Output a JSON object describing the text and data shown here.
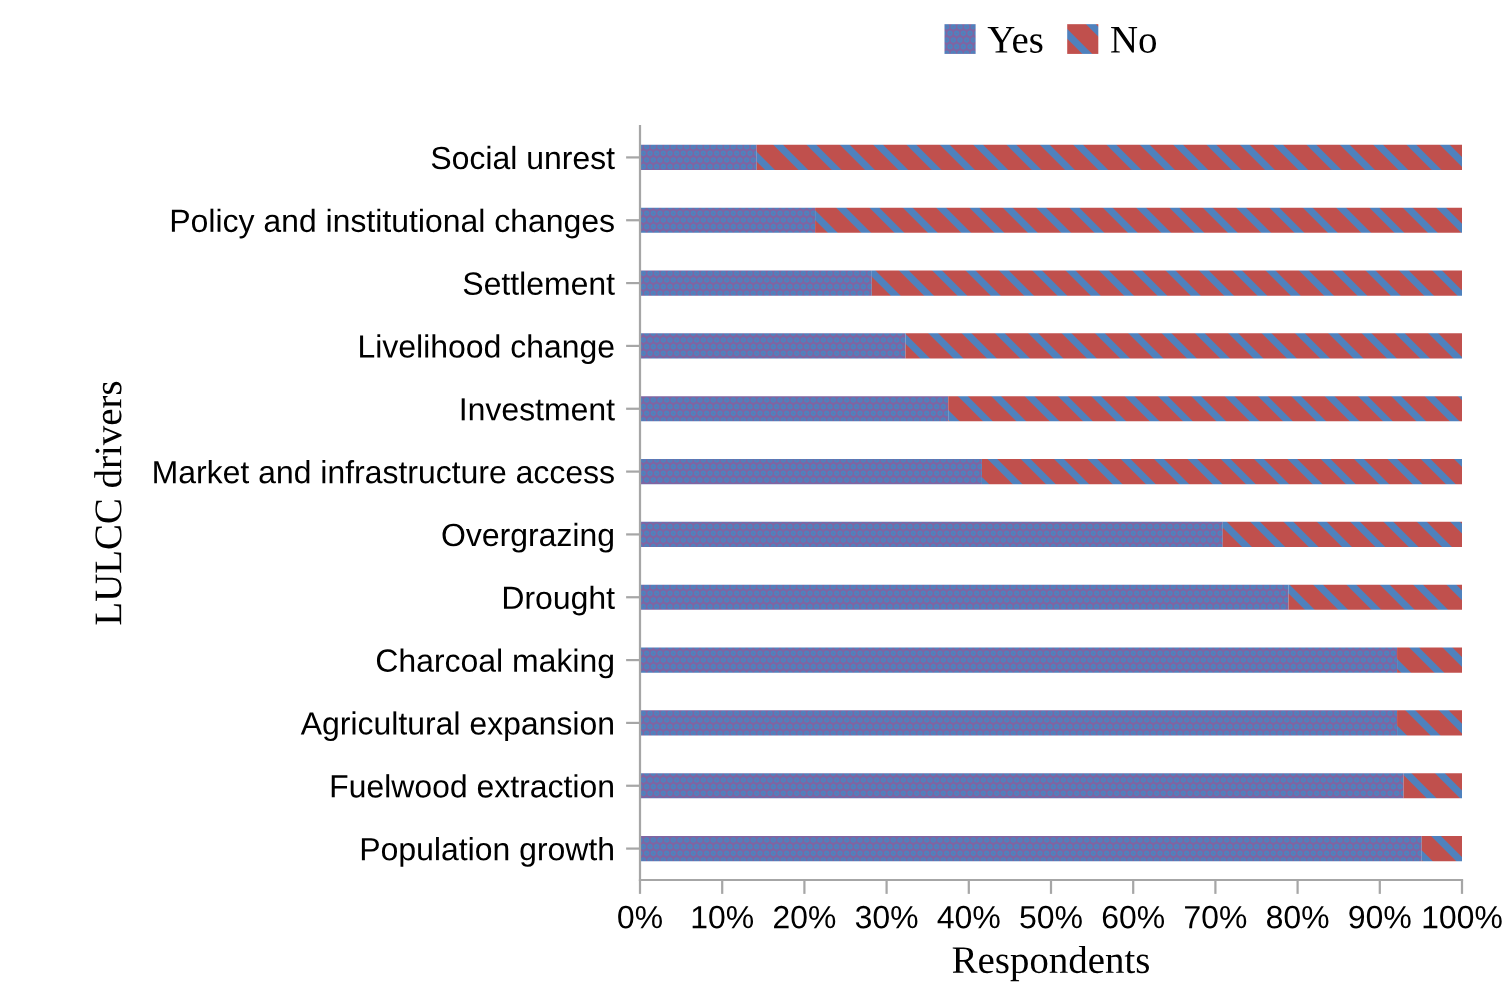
{
  "chart_data": {
    "type": "bar",
    "orientation": "horizontal",
    "stacked": true,
    "categories": [
      "Social unrest",
      "Policy and institutional changes",
      "Settlement",
      "Livelihood change",
      "Investment",
      "Market and infrastructure access",
      "Overgrazing",
      "Drought",
      "Charcoal making",
      "Agricultural expansion",
      "Fuelwood extraction",
      "Population growth"
    ],
    "series": [
      {
        "name": "Yes",
        "color": "#4f81bd",
        "values": [
          14.2,
          21.3,
          28.2,
          32.3,
          37.5,
          41.6,
          70.9,
          78.9,
          92.1,
          92.1,
          92.9,
          95.1
        ]
      },
      {
        "name": "No",
        "color": "#c0504d",
        "values": [
          85.8,
          78.7,
          71.8,
          67.7,
          62.5,
          58.4,
          29.1,
          21.1,
          7.9,
          7.9,
          7.1,
          4.9
        ]
      }
    ],
    "xlim": [
      0,
      100
    ],
    "xticks": [
      {
        "value": 0,
        "label": "0%"
      },
      {
        "value": 10,
        "label": "10%"
      },
      {
        "value": 20,
        "label": "20%"
      },
      {
        "value": 30,
        "label": "30%"
      },
      {
        "value": 40,
        "label": "40%"
      },
      {
        "value": 50,
        "label": "50%"
      },
      {
        "value": 60,
        "label": "60%"
      },
      {
        "value": 70,
        "label": "70%"
      },
      {
        "value": 80,
        "label": "80%"
      },
      {
        "value": 90,
        "label": "90%"
      },
      {
        "value": 100,
        "label": "100%"
      }
    ],
    "xlabel": "Respondents",
    "ylabel": "LULCC drivers",
    "legend": "top",
    "grid": false
  }
}
